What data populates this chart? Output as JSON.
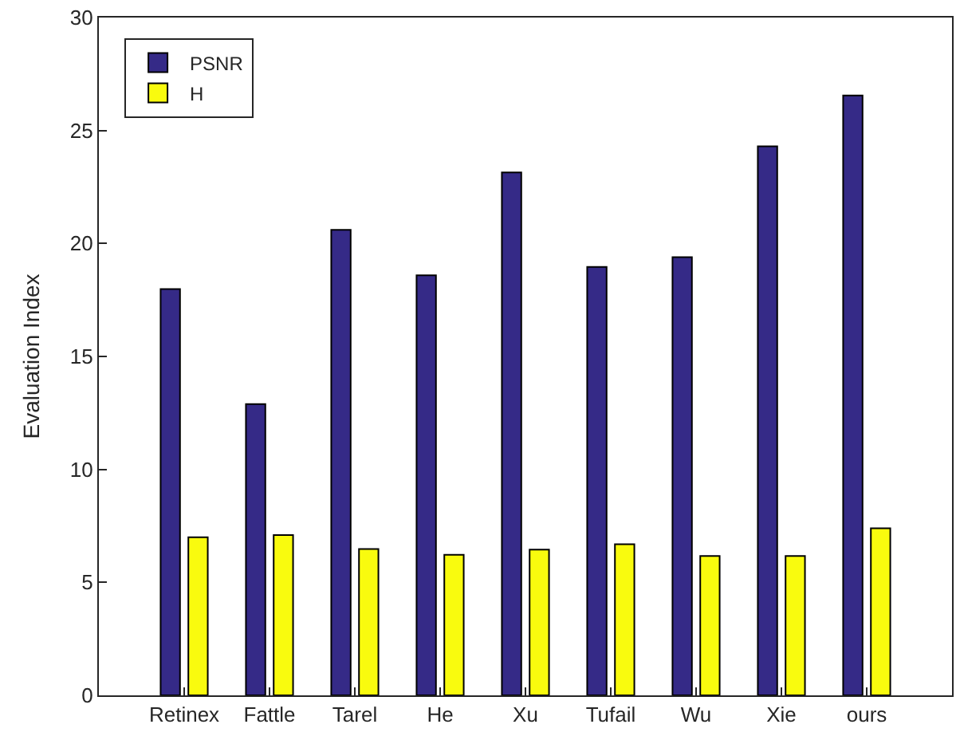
{
  "chart_data": {
    "type": "bar",
    "ylabel": "Evaluation Index",
    "categories": [
      "Retinex",
      "Fattle",
      "Tarel",
      "He",
      "Xu",
      "Tufail",
      "Wu",
      "Xie",
      "ours"
    ],
    "series": [
      {
        "name": "PSNR",
        "color": "#352a87",
        "values": [
          17.98,
          12.89,
          20.6,
          18.59,
          23.14,
          18.96,
          19.39,
          24.3,
          26.55
        ]
      },
      {
        "name": "H",
        "color": "#f9fb0e",
        "values": [
          7.0,
          7.09,
          6.48,
          6.22,
          6.45,
          6.69,
          6.17,
          6.17,
          7.39
        ]
      }
    ],
    "ylim": [
      0,
      30
    ],
    "yticks": [
      0,
      5,
      10,
      15,
      20,
      25,
      30
    ],
    "legend": "top left"
  }
}
